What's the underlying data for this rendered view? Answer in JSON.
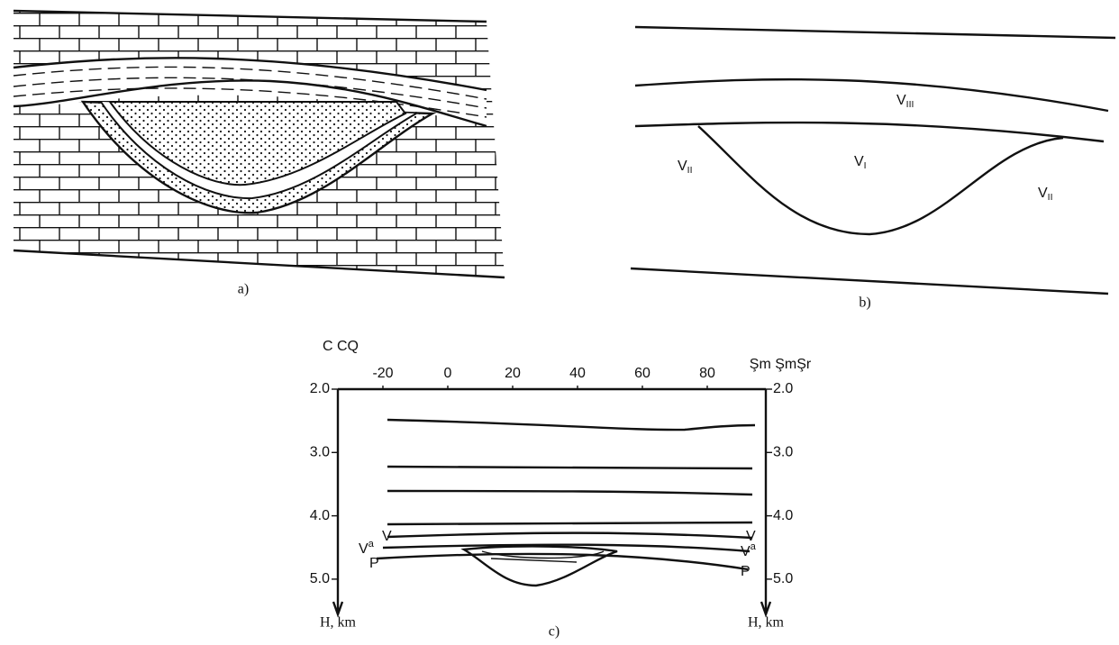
{
  "panel_a": {
    "caption": "a)"
  },
  "panel_b": {
    "caption": "b)",
    "labels": [
      {
        "main": "V",
        "sub": "III"
      },
      {
        "main": "V",
        "sub": "II"
      },
      {
        "main": "V",
        "sub": "I"
      },
      {
        "main": "V",
        "sub": "II"
      }
    ]
  },
  "panel_c": {
    "caption": "c)",
    "left_header": "C CQ",
    "right_header": "Şm ŞmŞr",
    "xticks": [
      -20,
      0,
      20,
      40,
      60,
      80
    ],
    "yticks": [
      {
        "value": 2,
        "label": "2.0"
      },
      {
        "value": 3,
        "label": "3.0"
      },
      {
        "value": 4,
        "label": "4.0"
      },
      {
        "value": 5,
        "label": "5.0"
      }
    ],
    "axis_label_left": "H, km",
    "axis_label_right": "H, km",
    "left_labels": [
      {
        "main": "V"
      },
      {
        "main": "V",
        "sup": "a"
      },
      {
        "main": "P"
      }
    ],
    "right_labels": [
      {
        "main": "V"
      },
      {
        "main": "V",
        "sup": "a"
      },
      {
        "main": "P"
      }
    ]
  }
}
